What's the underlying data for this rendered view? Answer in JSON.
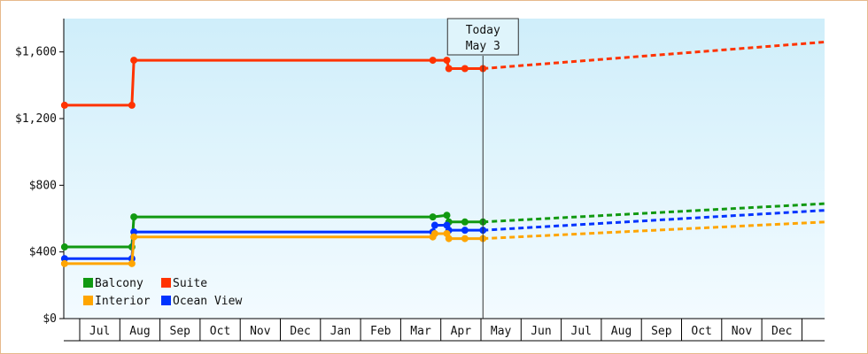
{
  "colors": {
    "Balcony": "#119911",
    "Suite": "#ff3300",
    "Interior": "#ffa500",
    "Ocean View": "#0033ff",
    "plot_bg_top": "#cfeefa",
    "plot_bg_bottom": "#f3fbff",
    "frame_border": "#e7b98c"
  },
  "today_box": {
    "line1": "Today",
    "line2": "May 3"
  },
  "legend": {
    "items": [
      {
        "name": "Balcony",
        "color": "#119911"
      },
      {
        "name": "Suite",
        "color": "#ff3300"
      },
      {
        "name": "Interior",
        "color": "#ffa500"
      },
      {
        "name": "Ocean View",
        "color": "#0033ff"
      }
    ],
    "placement": "bottom-left"
  },
  "chart_data": {
    "type": "line",
    "title": "",
    "xlabel": "",
    "ylabel": "",
    "ylim": [
      0,
      1800
    ],
    "y_ticks": [
      0,
      400,
      800,
      1200,
      1600
    ],
    "y_tick_labels": [
      "$0",
      "$400",
      "$800",
      "$1,200",
      "$1,600"
    ],
    "x_month_labels": [
      "Jul",
      "Aug",
      "Sep",
      "Oct",
      "Nov",
      "Dec",
      "Jan",
      "Feb",
      "Mar",
      "Apr",
      "May",
      "Jun",
      "Jul",
      "Aug",
      "Sep",
      "Oct",
      "Nov",
      "Dec"
    ],
    "x_range_months": [
      -0.4,
      18.6
    ],
    "today_x": 10.05,
    "grid": false,
    "series": [
      {
        "name": "Suite",
        "history": [
          [
            -0.4,
            1280
          ],
          [
            1.3,
            1280
          ],
          [
            1.35,
            1550
          ],
          [
            8.8,
            1550
          ],
          [
            9.15,
            1550
          ],
          [
            9.2,
            1500
          ],
          [
            9.6,
            1500
          ],
          [
            10.05,
            1500
          ]
        ],
        "forecast": [
          [
            10.05,
            1500
          ],
          [
            18.6,
            1660
          ]
        ]
      },
      {
        "name": "Balcony",
        "history": [
          [
            -0.4,
            430
          ],
          [
            1.3,
            430
          ],
          [
            1.35,
            610
          ],
          [
            8.8,
            610
          ],
          [
            9.15,
            620
          ],
          [
            9.2,
            580
          ],
          [
            9.6,
            580
          ],
          [
            10.05,
            580
          ]
        ],
        "forecast": [
          [
            10.05,
            580
          ],
          [
            18.6,
            690
          ]
        ]
      },
      {
        "name": "Ocean View",
        "history": [
          [
            -0.4,
            360
          ],
          [
            1.3,
            360
          ],
          [
            1.35,
            520
          ],
          [
            8.8,
            520
          ],
          [
            8.85,
            560
          ],
          [
            9.15,
            560
          ],
          [
            9.2,
            530
          ],
          [
            9.6,
            530
          ],
          [
            10.05,
            530
          ]
        ],
        "forecast": [
          [
            10.05,
            530
          ],
          [
            18.6,
            650
          ]
        ]
      },
      {
        "name": "Interior",
        "history": [
          [
            -0.4,
            330
          ],
          [
            1.3,
            330
          ],
          [
            1.35,
            490
          ],
          [
            8.8,
            490
          ],
          [
            8.85,
            510
          ],
          [
            9.15,
            510
          ],
          [
            9.2,
            480
          ],
          [
            9.6,
            480
          ],
          [
            10.05,
            480
          ]
        ],
        "forecast": [
          [
            10.05,
            480
          ],
          [
            18.6,
            580
          ]
        ]
      }
    ]
  }
}
